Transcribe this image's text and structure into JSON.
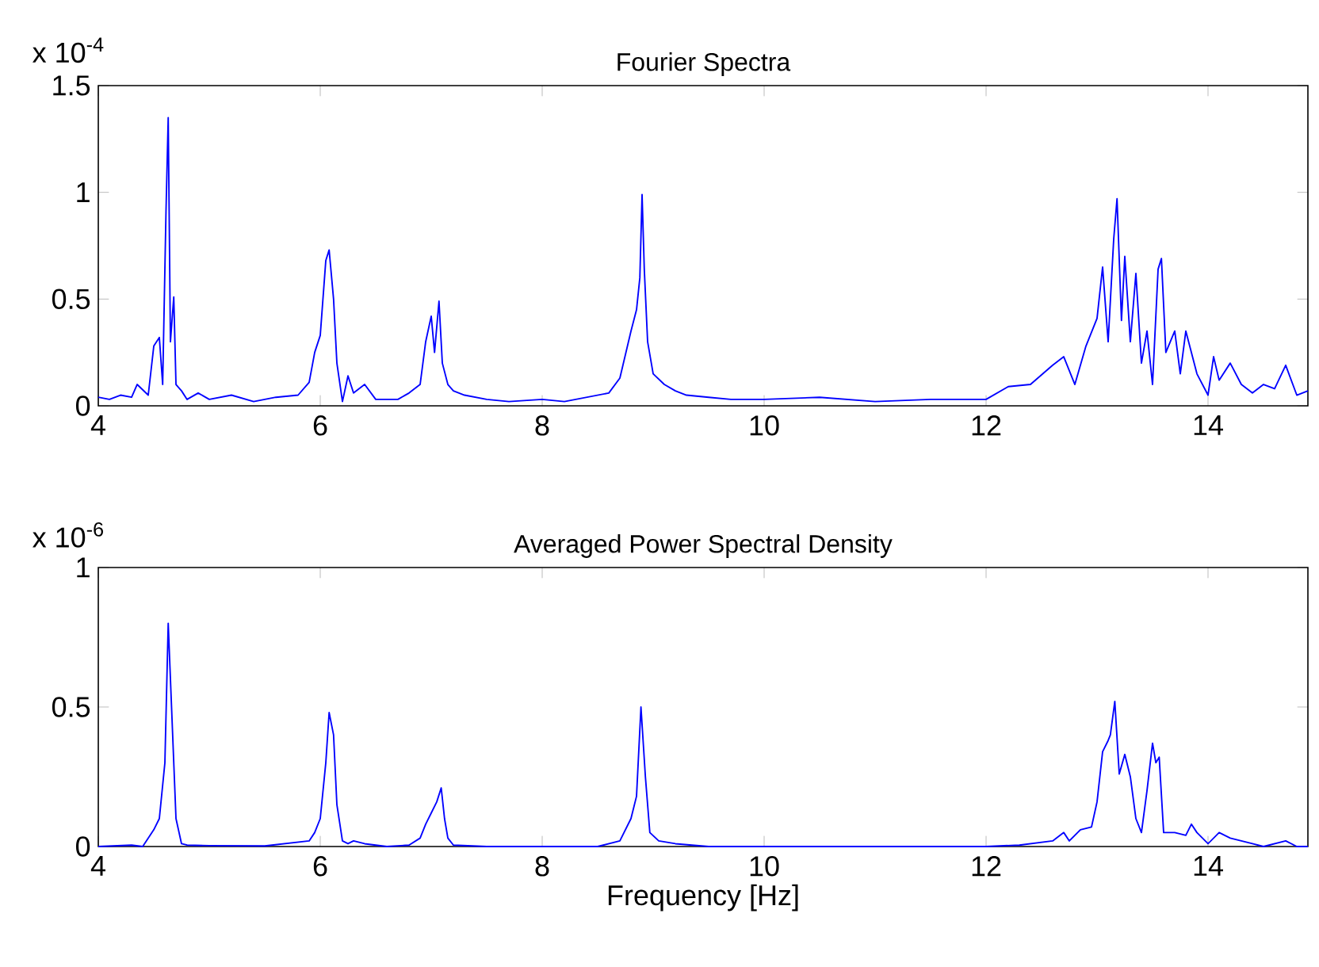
{
  "chart_data": [
    {
      "type": "line",
      "title": "Fourier Spectra",
      "annotations": [
        "x 10$^{-4}$"
      ],
      "xlim": [
        4,
        14.9
      ],
      "ylim": [
        0,
        1.5
      ],
      "xticks": [
        4,
        6,
        8,
        10,
        12,
        14
      ],
      "yticks": [
        0,
        0.5,
        1,
        1.5
      ],
      "series": [
        {
          "color": "#0000ff",
          "line_style": "solid",
          "x": [
            4.0,
            4.1,
            4.2,
            4.3,
            4.35,
            4.45,
            4.5,
            4.55,
            4.58,
            4.61,
            4.63,
            4.65,
            4.68,
            4.7,
            4.75,
            4.8,
            4.9,
            5.0,
            5.2,
            5.4,
            5.6,
            5.8,
            5.9,
            5.95,
            6.0,
            6.05,
            6.08,
            6.12,
            6.15,
            6.2,
            6.25,
            6.3,
            6.4,
            6.5,
            6.7,
            6.8,
            6.9,
            6.95,
            7.0,
            7.03,
            7.07,
            7.1,
            7.15,
            7.2,
            7.3,
            7.5,
            7.7,
            8.0,
            8.2,
            8.4,
            8.6,
            8.7,
            8.8,
            8.85,
            8.88,
            8.9,
            8.92,
            8.95,
            9.0,
            9.1,
            9.2,
            9.3,
            9.5,
            9.7,
            10.0,
            10.5,
            11.0,
            11.5,
            12.0,
            12.2,
            12.4,
            12.6,
            12.7,
            12.8,
            12.9,
            13.0,
            13.05,
            13.1,
            13.15,
            13.18,
            13.22,
            13.25,
            13.3,
            13.35,
            13.4,
            13.45,
            13.5,
            13.55,
            13.58,
            13.62,
            13.7,
            13.75,
            13.8,
            13.9,
            14.0,
            14.05,
            14.1,
            14.2,
            14.3,
            14.4,
            14.5,
            14.6,
            14.7,
            14.8,
            14.9
          ],
          "values": [
            0.04,
            0.03,
            0.05,
            0.04,
            0.1,
            0.05,
            0.28,
            0.32,
            0.1,
            0.91,
            1.35,
            0.3,
            0.51,
            0.1,
            0.07,
            0.03,
            0.06,
            0.03,
            0.05,
            0.02,
            0.04,
            0.05,
            0.11,
            0.25,
            0.33,
            0.68,
            0.73,
            0.5,
            0.2,
            0.02,
            0.14,
            0.06,
            0.1,
            0.03,
            0.03,
            0.06,
            0.1,
            0.3,
            0.42,
            0.25,
            0.49,
            0.2,
            0.1,
            0.07,
            0.05,
            0.03,
            0.02,
            0.03,
            0.02,
            0.04,
            0.06,
            0.13,
            0.35,
            0.45,
            0.6,
            0.99,
            0.64,
            0.3,
            0.15,
            0.1,
            0.07,
            0.05,
            0.04,
            0.03,
            0.03,
            0.04,
            0.02,
            0.03,
            0.03,
            0.09,
            0.1,
            0.19,
            0.23,
            0.1,
            0.28,
            0.41,
            0.65,
            0.3,
            0.78,
            0.97,
            0.4,
            0.7,
            0.3,
            0.62,
            0.2,
            0.35,
            0.1,
            0.64,
            0.69,
            0.25,
            0.35,
            0.15,
            0.35,
            0.15,
            0.05,
            0.23,
            0.12,
            0.2,
            0.1,
            0.06,
            0.1,
            0.08,
            0.19,
            0.05,
            0.07
          ]
        }
      ]
    },
    {
      "type": "line",
      "title": "Averaged Power Spectral Density",
      "xlabel": "Frequency [Hz]",
      "annotations": [
        "x 10$^{-6}$"
      ],
      "xlim": [
        4,
        14.9
      ],
      "ylim": [
        0,
        1
      ],
      "xticks": [
        4,
        6,
        8,
        10,
        12,
        14
      ],
      "yticks": [
        0,
        0.5,
        1
      ],
      "series": [
        {
          "color": "#0000ff",
          "line_style": "solid",
          "x": [
            4.0,
            4.3,
            4.4,
            4.5,
            4.55,
            4.6,
            4.63,
            4.66,
            4.7,
            4.75,
            4.8,
            5.0,
            5.5,
            5.9,
            5.95,
            6.0,
            6.05,
            6.08,
            6.12,
            6.15,
            6.2,
            6.25,
            6.3,
            6.4,
            6.6,
            6.8,
            6.9,
            6.95,
            7.0,
            7.05,
            7.09,
            7.12,
            7.15,
            7.2,
            7.5,
            8.0,
            8.5,
            8.7,
            8.8,
            8.85,
            8.89,
            8.93,
            8.97,
            9.05,
            9.2,
            9.5,
            10.0,
            11.0,
            12.0,
            12.3,
            12.6,
            12.7,
            12.75,
            12.85,
            12.95,
            13.0,
            13.05,
            13.1,
            13.12,
            13.16,
            13.2,
            13.25,
            13.3,
            13.35,
            13.4,
            13.45,
            13.5,
            13.53,
            13.56,
            13.6,
            13.7,
            13.8,
            13.85,
            13.9,
            14.0,
            14.1,
            14.2,
            14.4,
            14.5,
            14.7,
            14.8,
            14.9
          ],
          "values": [
            0,
            0.005,
            0,
            0.06,
            0.1,
            0.3,
            0.8,
            0.5,
            0.1,
            0.01,
            0.005,
            0.003,
            0.002,
            0.02,
            0.05,
            0.1,
            0.3,
            0.48,
            0.4,
            0.15,
            0.02,
            0.01,
            0.02,
            0.01,
            0,
            0.005,
            0.03,
            0.08,
            0.12,
            0.16,
            0.21,
            0.1,
            0.03,
            0.005,
            0,
            0,
            0,
            0.02,
            0.1,
            0.18,
            0.5,
            0.25,
            0.05,
            0.02,
            0.01,
            0,
            0,
            0,
            0,
            0.005,
            0.02,
            0.05,
            0.02,
            0.06,
            0.07,
            0.16,
            0.34,
            0.38,
            0.4,
            0.52,
            0.26,
            0.33,
            0.25,
            0.1,
            0.05,
            0.2,
            0.37,
            0.3,
            0.32,
            0.05,
            0.05,
            0.04,
            0.08,
            0.05,
            0.01,
            0.05,
            0.03,
            0.01,
            0,
            0.02,
            0,
            0
          ]
        }
      ]
    }
  ]
}
